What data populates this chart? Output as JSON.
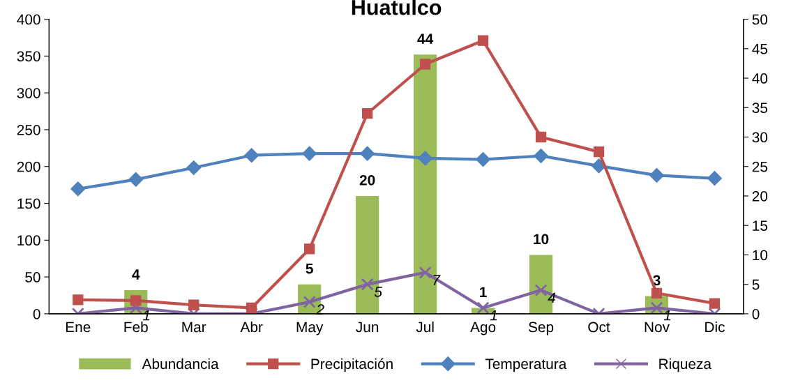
{
  "chart_data": {
    "type": "bar",
    "title": "Huatulco",
    "categories": [
      "Ene",
      "Feb",
      "Mar",
      "Abr",
      "May",
      "Jun",
      "Jul",
      "Ago",
      "Sep",
      "Oct",
      "Nov",
      "Dic"
    ],
    "series": [
      {
        "name": "Abundancia",
        "axis": "y2",
        "color": "#9bbb59",
        "values": [
          0,
          4,
          0,
          0,
          5,
          20,
          44,
          1,
          10,
          0,
          3,
          0
        ],
        "value_labels": [
          null,
          "4",
          null,
          null,
          "5",
          "20",
          "44",
          "1",
          "10",
          null,
          "3",
          null
        ]
      },
      {
        "name": "Precipitación",
        "type": "line",
        "marker": "square",
        "color": "#c0504d",
        "values": [
          19,
          18,
          12,
          8,
          88,
          272,
          339,
          371,
          240,
          220,
          28,
          14
        ]
      },
      {
        "name": "Temperatura",
        "type": "line",
        "axis": "y2",
        "marker": "diamond",
        "color": "#4f81bd",
        "values": [
          21.2,
          22.8,
          24.8,
          26.9,
          27.2,
          27.2,
          26.4,
          26.2,
          26.8,
          25.1,
          23.5,
          23.0
        ]
      },
      {
        "name": "Riqueza",
        "type": "line",
        "axis": "y2",
        "marker": "cross",
        "color": "#8064a2",
        "values": [
          0,
          1,
          0,
          0,
          2,
          5,
          7,
          1,
          4,
          0,
          1,
          0
        ],
        "value_labels": [
          null,
          "1",
          null,
          null,
          "2",
          "5",
          "7",
          "1",
          "4",
          null,
          "1",
          null
        ]
      }
    ],
    "ylim": [
      0,
      400
    ],
    "yticks": [
      0,
      50,
      100,
      150,
      200,
      250,
      300,
      350,
      400
    ],
    "y2lim": [
      0,
      50
    ],
    "y2ticks": [
      0,
      5,
      10,
      15,
      20,
      25,
      30,
      35,
      40,
      45,
      50
    ],
    "legend": "bottom",
    "grid": false
  }
}
